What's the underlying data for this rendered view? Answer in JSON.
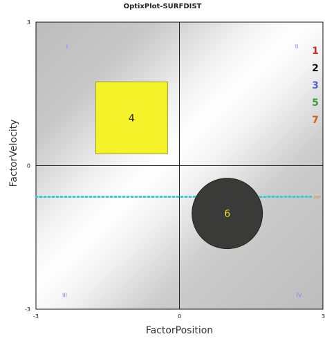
{
  "title": "OptixPlot-SURFDIST",
  "chart_data": {
    "type": "scatter",
    "title": "OptixPlot-SURFDIST",
    "xlabel": "FactorPosition",
    "ylabel": "FactorVelocity",
    "xlim": [
      -3,
      3
    ],
    "ylim": [
      -3,
      3
    ],
    "x_ticks": [
      "-3",
      "0",
      "3"
    ],
    "y_ticks": [
      "3",
      "0",
      "-3"
    ],
    "quadrant_labels": [
      "I",
      "II",
      "III",
      "IV"
    ],
    "reference_line": {
      "y": -0.65,
      "label": "par",
      "color": "#3cc8d6"
    },
    "points": [
      {
        "label": "4",
        "x": -1.0,
        "y": 1.0,
        "shape": "square",
        "color": "#f5f22a",
        "text_color": "#222222"
      },
      {
        "label": "6",
        "x": 1.0,
        "y": -1.0,
        "shape": "circle",
        "color": "#3a3a38",
        "text_color": "#f0e020"
      }
    ],
    "legend": [
      {
        "label": "1",
        "color": "#cc2a2a"
      },
      {
        "label": "2",
        "color": "#111111"
      },
      {
        "label": "3",
        "color": "#5560c8"
      },
      {
        "label": "5",
        "color": "#3a9a3a"
      },
      {
        "label": "7",
        "color": "#d06010"
      }
    ],
    "colors": {
      "background": "#c4c4c4",
      "band": "#ffffff",
      "axis": "#222222"
    }
  }
}
